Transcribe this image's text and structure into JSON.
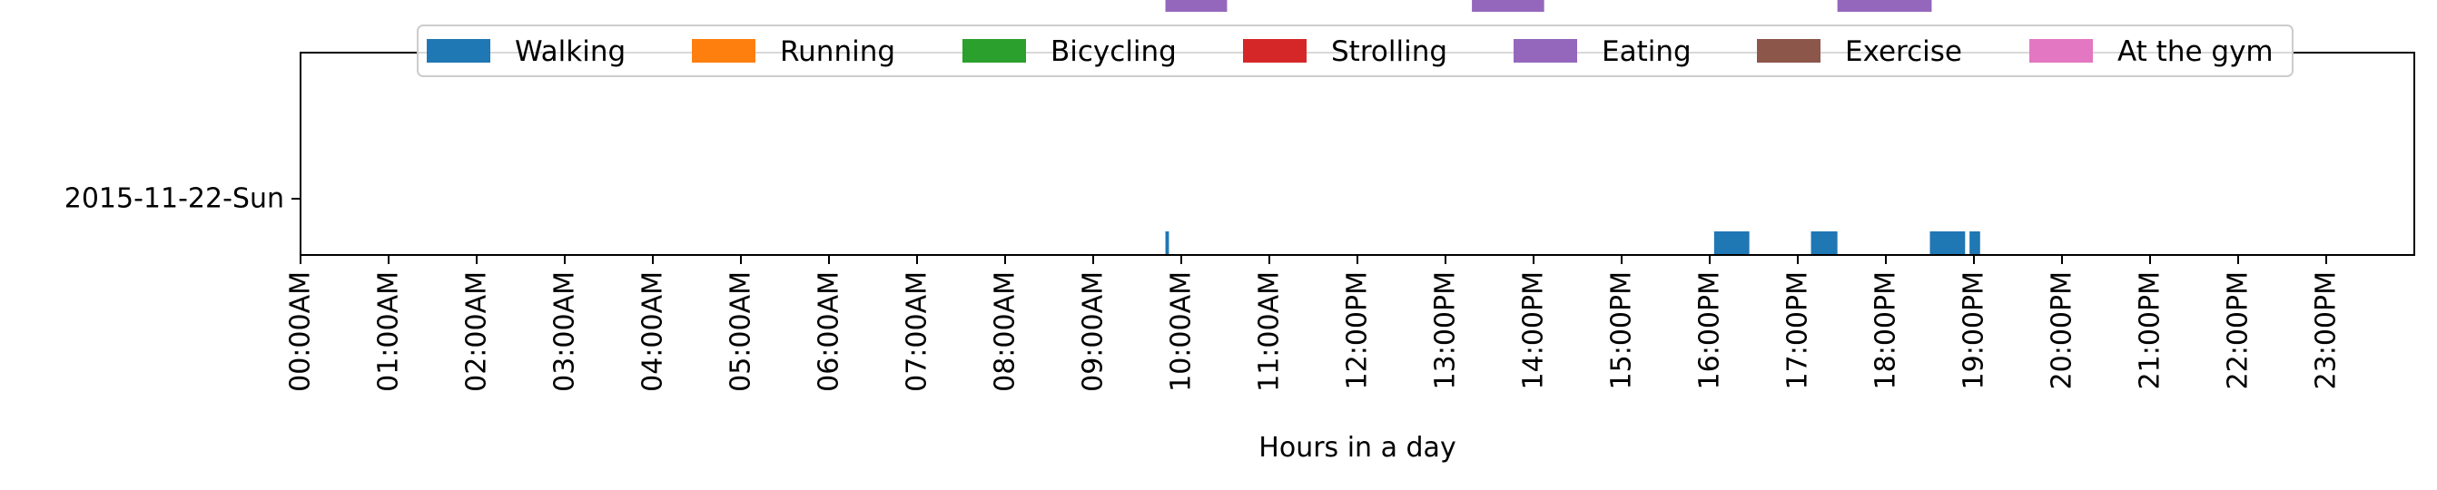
{
  "chart_data": {
    "type": "timeline",
    "title": "",
    "xlabel": "Hours in a day",
    "ylabel": "",
    "xlim": [
      0,
      24
    ],
    "x_ticks": [
      "00:00AM",
      "01:00AM",
      "02:00AM",
      "03:00AM",
      "04:00AM",
      "05:00AM",
      "06:00AM",
      "07:00AM",
      "08:00AM",
      "09:00AM",
      "10:00AM",
      "11:00AM",
      "12:00PM",
      "13:00PM",
      "14:00PM",
      "15:00PM",
      "16:00PM",
      "17:00PM",
      "18:00PM",
      "19:00PM",
      "20:00PM",
      "21:00PM",
      "22:00PM",
      "23:00PM"
    ],
    "y_categories": [
      "2015-11-22-Sun"
    ],
    "legend_position": "top-center",
    "grid": false,
    "series": [
      {
        "name": "Walking",
        "color": "#1f77b4",
        "lane": 0,
        "intervals": [
          [
            9.82,
            9.86
          ],
          [
            16.05,
            16.45
          ],
          [
            17.15,
            17.45
          ],
          [
            18.5,
            18.9
          ],
          [
            18.95,
            19.07
          ]
        ]
      },
      {
        "name": "Running",
        "color": "#ff7f0e",
        "lane": 1,
        "intervals": []
      },
      {
        "name": "Bicycling",
        "color": "#2ca02c",
        "lane": 2,
        "intervals": []
      },
      {
        "name": "Strolling",
        "color": "#d62728",
        "lane": 3,
        "intervals": []
      },
      {
        "name": "Eating",
        "color": "#9467bd",
        "lane": 4,
        "intervals": [
          [
            9.82,
            10.52
          ],
          [
            13.3,
            14.12
          ],
          [
            17.45,
            18.52
          ]
        ]
      },
      {
        "name": "Exercise",
        "color": "#8c564b",
        "lane": 5,
        "intervals": []
      },
      {
        "name": "At the gym",
        "color": "#e377c2",
        "lane": 6,
        "intervals": []
      }
    ]
  }
}
